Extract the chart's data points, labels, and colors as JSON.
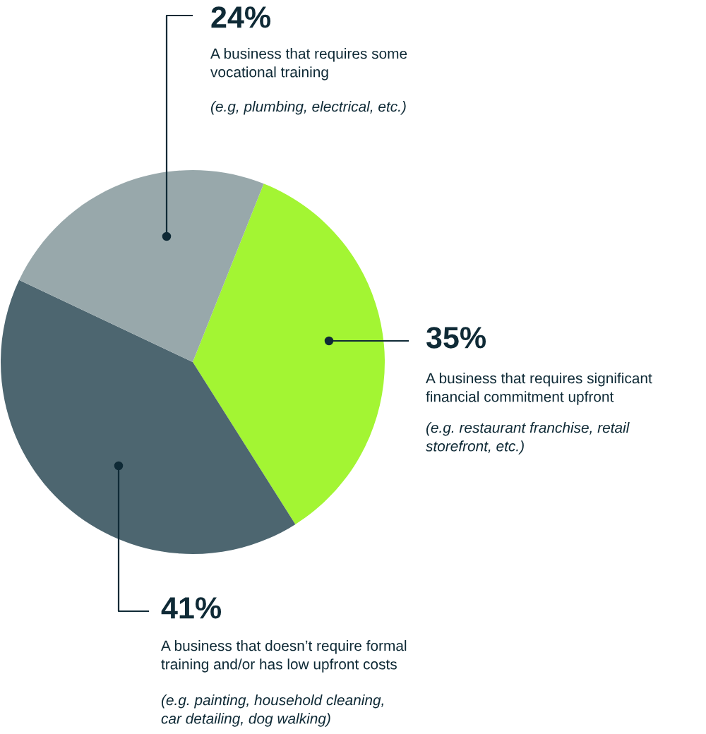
{
  "chart_data": {
    "type": "pie",
    "categories": [
      "A business that requires significant\nfinancial commitment upfront",
      "A business that doesn’t require formal\ntraining and/or has low upfront costs",
      "A business that requires some\nvocational training"
    ],
    "values": [
      35,
      41,
      24
    ],
    "colors": [
      "#a3f533",
      "#4d6670",
      "#98a8ab"
    ],
    "value_labels": [
      "35%",
      "41%",
      "24%"
    ],
    "annotations": [
      "(e.g. restaurant franchise, retail\nstorefront, etc.)",
      "(e.g. painting, household cleaning,\ncar detailing, dog walking)",
      "(e.g, plumbing, electrical, etc.)"
    ],
    "legend": false
  }
}
